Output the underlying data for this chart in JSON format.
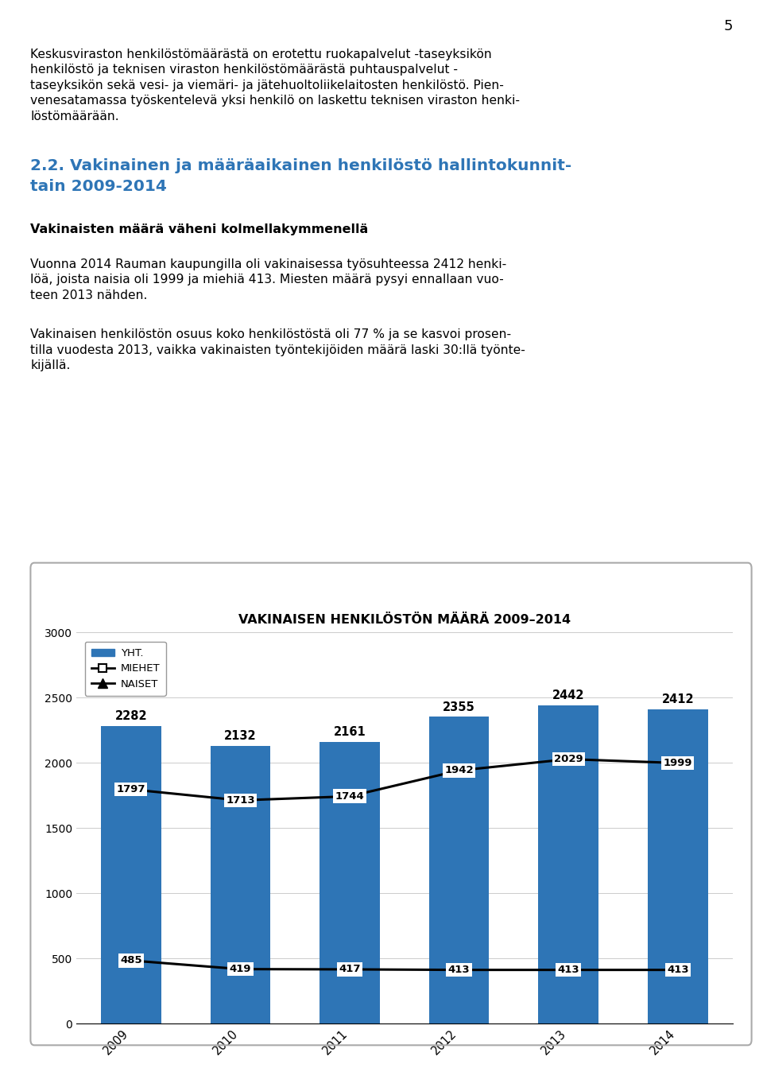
{
  "title": "VAKINAISEN HENKILÖSTÖN MÄÄRÄ 2009–2014",
  "years": [
    2009,
    2010,
    2011,
    2012,
    2013,
    2014
  ],
  "yht": [
    2282,
    2132,
    2161,
    2355,
    2442,
    2412
  ],
  "naiset": [
    1797,
    1713,
    1744,
    1942,
    2029,
    1999
  ],
  "miehet": [
    485,
    419,
    417,
    413,
    413,
    413
  ],
  "bar_color": "#2E75B6",
  "label_yht": "YHT.",
  "label_miehet": "MIEHET",
  "label_naiset": "NAISET",
  "ylim": [
    0,
    3000
  ],
  "yticks": [
    0,
    500,
    1000,
    1500,
    2000,
    2500,
    3000
  ],
  "page_number": "5",
  "para1_lines": [
    "Keskusviraston henkilöstömäärästä on erotettu ruokapalvelut -taseyksikön",
    "henkilöstö ja teknisen viraston henkilöstömäärästä puhtauspalvelut -",
    "taseyksikön sekä vesi- ja viemäri- ja jätehuoltoliikelaitosten henkilöstö. Pien-",
    "venesatamassa työskentelevä yksi henkilö on laskettu teknisen viraston henki-",
    "löstömäärään."
  ],
  "heading_lines": [
    "2.2. Vakinainen ja määräaikainen henkilöstö hallintokunnit-",
    "tain 2009-2014"
  ],
  "subheading": "Vakinaisten määrä väheni kolmellakymmenellä",
  "para2_lines": [
    "Vuonna 2014 Rauman kaupungilla oli vakinaisessa työsuhteessa 2412 henki-",
    "löä, joista naisia oli 1999 ja miehiä 413. Miesten määrä pysyi ennallaan vuo-",
    "teen 2013 nähden."
  ],
  "para3_lines": [
    "Vakinaisen henkilöstön osuus koko henkilöstöstä oli 77 % ja se kasvoi prosen-",
    "tilla vuodesta 2013, vaikka vakinaisten työntekijöiden määrä laski 30:llä työnte-",
    "kijällä."
  ]
}
